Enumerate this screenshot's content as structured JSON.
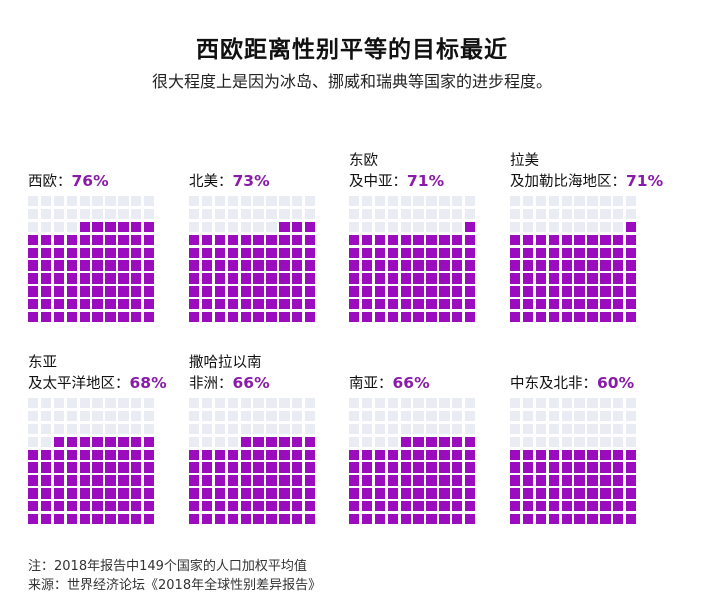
{
  "title": "西欧距离性别平等的目标最近",
  "subtitle": "很大程度上是因为冰岛、挪威和瑞典等国家的进步程度。",
  "colors": {
    "filled": "#9c0cbf",
    "empty": "#e9ecf2",
    "percent_text": "#8a1ba8"
  },
  "chart_data": {
    "type": "waffle",
    "cells_per_chart": 100,
    "regions": [
      {
        "line1": "",
        "line2": "西欧：",
        "percent_label": "76%",
        "value": 76
      },
      {
        "line1": "",
        "line2": "北美：",
        "percent_label": "73%",
        "value": 73
      },
      {
        "line1": "东欧",
        "line2": "及中亚：",
        "percent_label": "71%",
        "value": 71
      },
      {
        "line1": "拉美",
        "line2": "及加勒比海地区：",
        "percent_label": "71%",
        "value": 71
      },
      {
        "line1": "东亚",
        "line2": "及太平洋地区：",
        "percent_label": "68%",
        "value": 68
      },
      {
        "line1": "撒哈拉以南",
        "line2": "非洲：",
        "percent_label": "66%",
        "value": 66
      },
      {
        "line1": "",
        "line2": "南亚：",
        "percent_label": "66%",
        "value": 66
      },
      {
        "line1": "",
        "line2": "中东及北非：",
        "percent_label": "60%",
        "value": 60
      }
    ]
  },
  "notes": {
    "note": "注：2018年报告中149个国家的人口加权平均值",
    "source": "来源：世界经济论坛《2018年全球性别差异报告》"
  }
}
